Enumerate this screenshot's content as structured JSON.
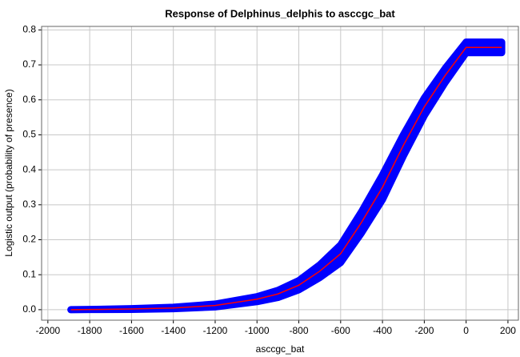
{
  "chart_data": {
    "type": "line",
    "title": "Response of Delphinus_delphis to asccgc_bat",
    "x_label": "asccgc_bat",
    "y_label": "Logistic output (probability of presence)",
    "x": [
      -1890,
      -1800,
      -1600,
      -1400,
      -1200,
      -1000,
      -900,
      -800,
      -700,
      -600,
      -500,
      -400,
      -300,
      -200,
      -100,
      0,
      170
    ],
    "series": [
      {
        "color": "#ff0000",
        "values": [
          0,
          0.0005,
          0.002,
          0.005,
          0.012,
          0.03,
          0.045,
          0.07,
          0.11,
          0.16,
          0.25,
          0.35,
          0.47,
          0.58,
          0.67,
          0.75,
          0.75
        ]
      },
      {
        "color": "#0000ff",
        "values": [
          0,
          0.0005,
          0.003,
          0.007,
          0.016,
          0.037,
          0.055,
          0.083,
          0.128,
          0.185,
          0.28,
          0.385,
          0.5,
          0.605,
          0.69,
          0.765,
          0.765
        ]
      },
      {
        "color": "#0000ff",
        "values": [
          0,
          0.0005,
          0.001,
          0.003,
          0.008,
          0.023,
          0.035,
          0.057,
          0.092,
          0.135,
          0.22,
          0.315,
          0.44,
          0.555,
          0.65,
          0.735,
          0.735
        ]
      }
    ],
    "xlim": [
      -2030,
      250
    ],
    "ylim": [
      -0.03,
      0.81
    ],
    "xticks": [
      -2000,
      -1800,
      -1600,
      -1400,
      -1200,
      -1000,
      -800,
      -600,
      -400,
      -200,
      0,
      200
    ],
    "yticks": [
      {
        "value": 0,
        "label": "0.0"
      },
      0.1,
      0.2,
      0.3,
      0.4,
      0.5,
      0.6,
      0.7,
      0.8
    ],
    "grid": true
  }
}
